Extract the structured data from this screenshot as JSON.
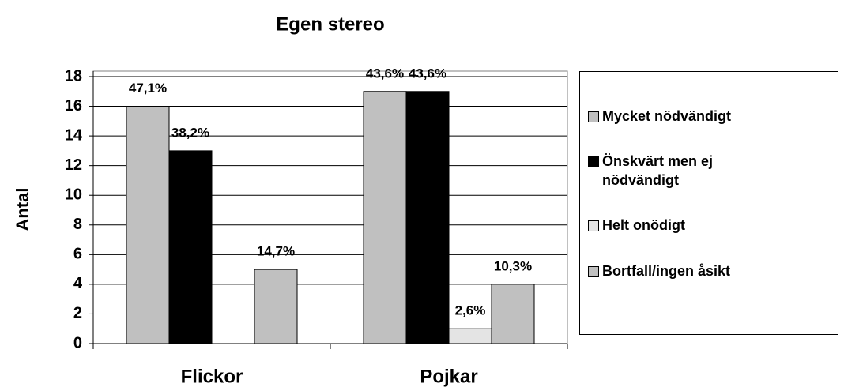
{
  "chart_data": {
    "type": "bar",
    "title": "Egen stereo",
    "y_label": "Antal",
    "categories": [
      "Flickor",
      "Pojkar"
    ],
    "series": [
      {
        "name": "Mycket nödvändigt",
        "color": "#c0c0c0",
        "values": [
          16,
          17
        ],
        "percent_labels": [
          "47,1%",
          "43,6%"
        ]
      },
      {
        "name": "Önskvärt men ej nödvändigt",
        "color": "#000000",
        "values": [
          13,
          17
        ],
        "percent_labels": [
          "38,2%",
          "43,6%"
        ]
      },
      {
        "name": "Helt onödigt",
        "color": "#e4e4e4",
        "values": [
          0,
          1
        ],
        "percent_labels": [
          null,
          "2,6%"
        ]
      },
      {
        "name": "Bortfall/ingen åsikt",
        "color": "#c0c0c0",
        "values": [
          5,
          4
        ],
        "percent_labels": [
          "14,7%",
          "10,3%"
        ]
      }
    ],
    "ylim": [
      0,
      18
    ],
    "yticks": [
      0,
      2,
      4,
      6,
      8,
      10,
      12,
      14,
      16,
      18
    ],
    "grid": true,
    "legend": "right"
  }
}
